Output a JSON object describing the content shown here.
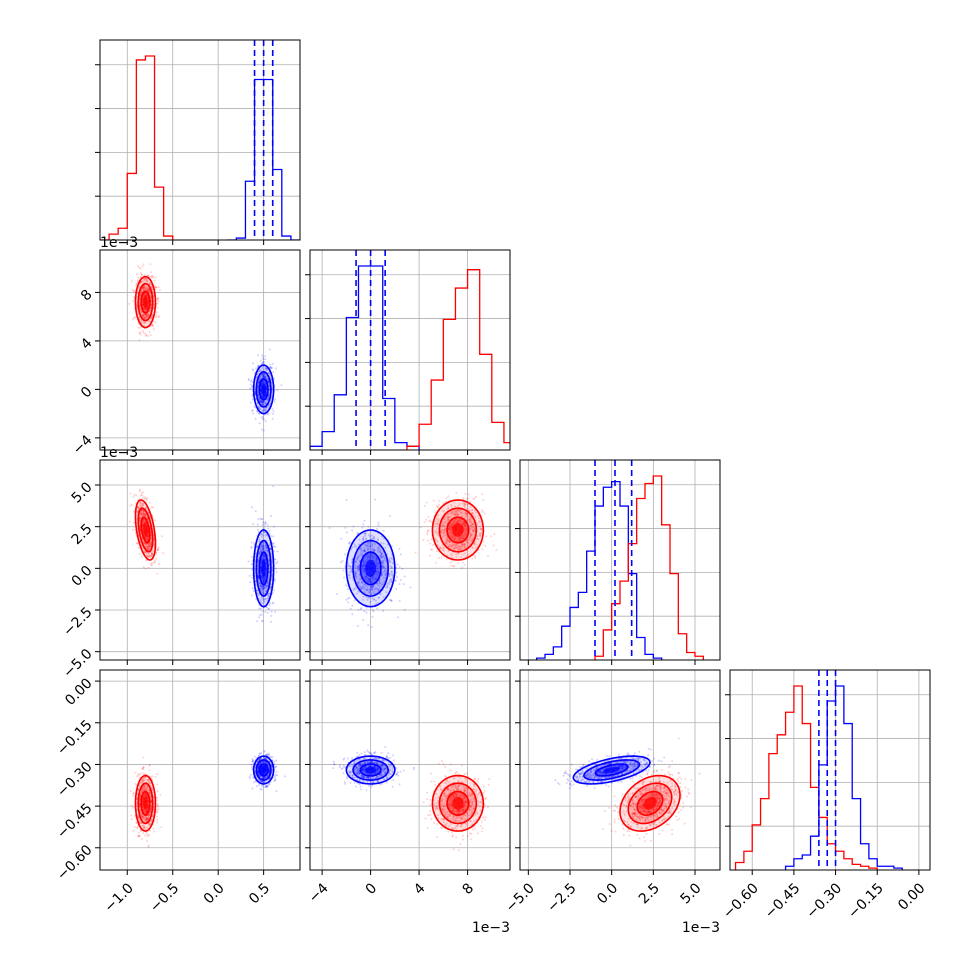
{
  "colors": {
    "series_a": "#ff0000",
    "series_b": "#0000ff",
    "grid": "#b0b0b0",
    "frame": "#000000"
  },
  "chart_data": {
    "type": "corner",
    "title": "",
    "legend": "none",
    "grid": true,
    "series": [
      {
        "name": "",
        "color": "#ff0000"
      },
      {
        "name": "",
        "color": "#0000ff"
      }
    ],
    "params": [
      {
        "range": [
          -1.3,
          0.9
        ],
        "ticks": [
          -1.0,
          -0.5,
          0.0,
          0.5
        ],
        "tick_labels": [
          "−1.0",
          "−0.5",
          "0.0",
          "0.5"
        ],
        "offset": "",
        "hist": [
          {
            "series": 0,
            "edges": [
              -1.3,
              -1.2,
              -1.1,
              -1.0,
              -0.9,
              -0.8,
              -0.7,
              -0.6,
              -0.5
            ],
            "counts": [
              0,
              0.03,
              0.06,
              0.34,
              0.92,
              0.94,
              0.27,
              0.02,
              0
            ]
          },
          {
            "series": 1,
            "edges": [
              0.1,
              0.2,
              0.3,
              0.4,
              0.5,
              0.6,
              0.7,
              0.8,
              0.9
            ],
            "counts": [
              0,
              0.01,
              0.3,
              0.82,
              0.82,
              0.36,
              0.02,
              0
            ]
          }
        ],
        "quantiles": [
          0.4,
          0.5,
          0.6
        ]
      },
      {
        "range": [
          -5,
          11.5
        ],
        "ticks": [
          -4,
          0,
          4,
          8
        ],
        "tick_labels": [
          "−4",
          "0",
          "4",
          "8"
        ],
        "offset": "1e−3",
        "hist": [
          {
            "series": 1,
            "edges": [
              -5,
              -4,
              -3,
              -2,
              -1,
              0,
              1,
              2,
              3,
              4
            ],
            "counts": [
              0.02,
              0.1,
              0.3,
              0.72,
              1.0,
              1.0,
              0.28,
              0.04,
              0.02
            ]
          },
          {
            "series": 0,
            "edges": [
              3,
              4,
              5,
              6,
              7,
              8,
              9,
              10,
              11,
              12
            ],
            "counts": [
              0.02,
              0.14,
              0.38,
              0.71,
              0.88,
              0.98,
              0.52,
              0.15,
              0.04
            ]
          }
        ],
        "quantiles": [
          -1.2,
          0.0,
          1.2
        ]
      },
      {
        "range": [
          -5.5,
          6.5
        ],
        "ticks": [
          -5.0,
          -2.5,
          0.0,
          2.5,
          5.0
        ],
        "tick_labels": [
          "−5.0",
          "−2.5",
          "0.0",
          "2.5",
          "5.0"
        ],
        "offset": "1e−3",
        "hist": [
          {
            "series": 1,
            "edges": [
              -4.5,
              -4,
              -3.5,
              -3,
              -2.5,
              -2,
              -1.5,
              -1,
              -0.5,
              0,
              0.5,
              1,
              1.5,
              2,
              2.5,
              3
            ],
            "counts": [
              0.01,
              0.03,
              0.07,
              0.18,
              0.28,
              0.36,
              0.58,
              0.82,
              0.92,
              0.95,
              0.82,
              0.46,
              0.12,
              0.03,
              0.01
            ]
          },
          {
            "series": 0,
            "edges": [
              -1,
              -0.5,
              0,
              0.5,
              1,
              1.5,
              2,
              2.5,
              3,
              3.5,
              4,
              4.5,
              5,
              5.5
            ],
            "counts": [
              0.02,
              0.16,
              0.3,
              0.42,
              0.62,
              0.86,
              0.94,
              0.98,
              0.72,
              0.46,
              0.14,
              0.04,
              0.02
            ]
          }
        ],
        "quantiles": [
          -1.0,
          0.2,
          1.2
        ]
      },
      {
        "range": [
          -0.68,
          0.04
        ],
        "ticks": [
          -0.6,
          -0.45,
          -0.3,
          -0.15,
          0.0
        ],
        "tick_labels": [
          "−0.60",
          "−0.45",
          "−0.30",
          "−0.15",
          "0.00"
        ],
        "offset": "",
        "hist": [
          {
            "series": 0,
            "edges": [
              -0.66,
              -0.63,
              -0.6,
              -0.57,
              -0.54,
              -0.51,
              -0.48,
              -0.45,
              -0.42,
              -0.39,
              -0.36,
              -0.33,
              -0.3,
              -0.27,
              -0.24,
              -0.21,
              -0.18,
              -0.15
            ],
            "counts": [
              0.04,
              0.1,
              0.24,
              0.38,
              0.62,
              0.72,
              0.84,
              0.98,
              0.78,
              0.44,
              0.28,
              0.14,
              0.1,
              0.06,
              0.03,
              0.02,
              0.01
            ]
          },
          {
            "series": 1,
            "edges": [
              -0.48,
              -0.45,
              -0.42,
              -0.39,
              -0.36,
              -0.33,
              -0.3,
              -0.27,
              -0.24,
              -0.21,
              -0.18,
              -0.15,
              -0.12,
              -0.09,
              -0.06
            ],
            "counts": [
              0.02,
              0.06,
              0.08,
              0.18,
              0.56,
              0.9,
              0.98,
              0.78,
              0.38,
              0.14,
              0.06,
              0.02,
              0.02,
              0.01
            ]
          }
        ],
        "quantiles": [
          -0.36,
          -0.33,
          -0.3
        ]
      }
    ],
    "series_stats": [
      {
        "series": 0,
        "mean": [
          -0.8,
          7.2,
          2.3,
          -0.44
        ],
        "sd": [
          0.055,
          1.05,
          0.9,
          0.05
        ],
        "corr": [
          [
            1,
            0,
            -0.45,
            0
          ],
          [
            0,
            1,
            0,
            0
          ],
          [
            -0.45,
            0,
            1,
            0.3
          ],
          [
            0,
            0,
            0.3,
            1
          ]
        ]
      },
      {
        "series": 1,
        "mean": [
          0.5,
          0.0,
          0.0,
          -0.32
        ],
        "sd": [
          0.055,
          1.0,
          1.15,
          0.025
        ],
        "corr": [
          [
            1,
            0,
            0,
            0
          ],
          [
            0,
            1,
            0,
            0
          ],
          [
            0,
            0,
            1,
            0.55
          ],
          [
            0,
            0,
            0.55,
            1
          ]
        ]
      }
    ]
  }
}
